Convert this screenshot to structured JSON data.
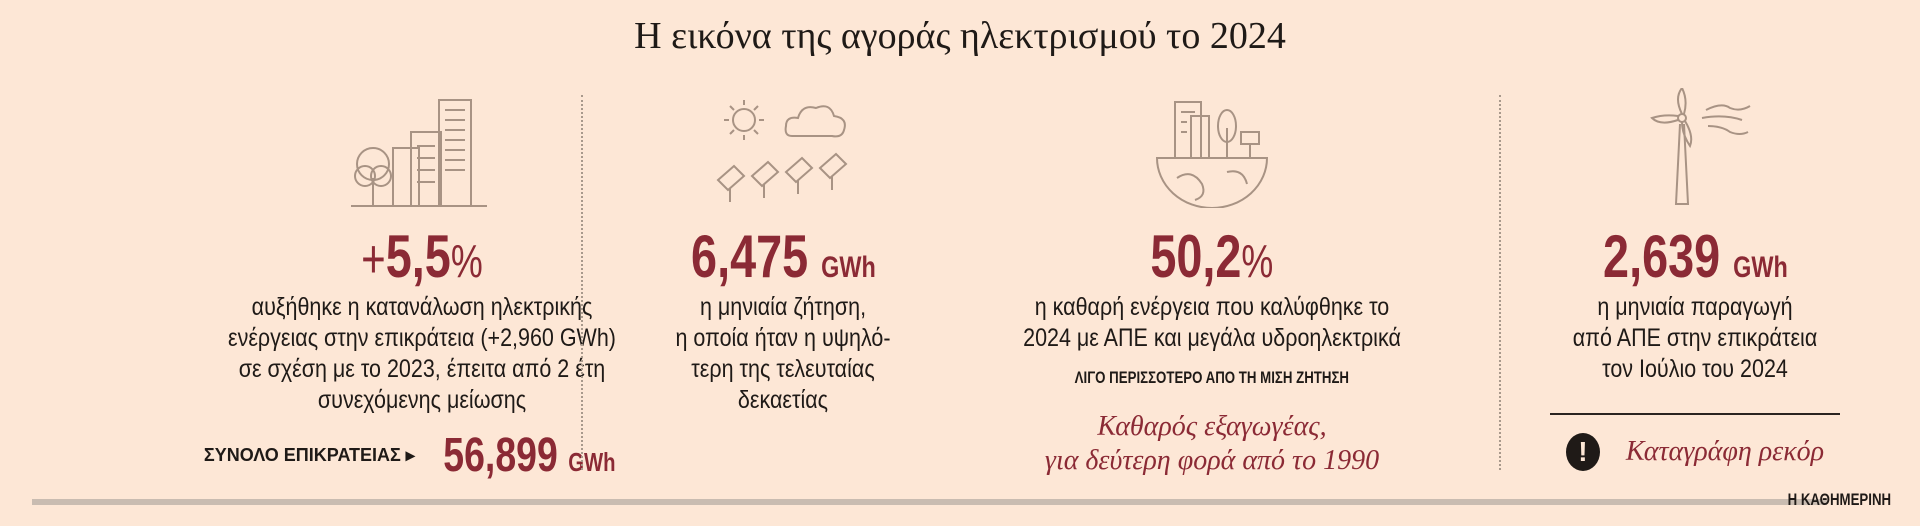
{
  "title": "Η εικόνα της αγοράς ηλεκτρισμού το 2024",
  "colors": {
    "accent": "#8b2a35",
    "background": "#fde7d6",
    "icon": "#a89384"
  },
  "panels": [
    {
      "icon": "city-buildings-tree-icon",
      "value_prefix": "+",
      "value": "5,5",
      "value_suffix": "%",
      "lines": [
        "αυξήθηκε η κατανάλωση ηλεκτρικής",
        "ενέργειας στην επικράτεια (+2,960 GWh)",
        "σε σχέση με το 2023, έπειτα από 2 έτη",
        "συνεχόμενης μείωσης"
      ],
      "total_label": "ΣΥΝΟΛΟ ΕΠΙΚΡΑΤΕΙΑΣ ▸",
      "total_value": "56,899",
      "total_unit": "GWh"
    },
    {
      "icon": "sun-cloud-solar-panels-icon",
      "value": "6,475",
      "unit": "GWh",
      "lines": [
        "η μηνιαία ζήτηση,",
        "η οποία ήταν η υψηλό-",
        "τερη της τελευταίας",
        "δεκαετίας"
      ]
    },
    {
      "icon": "green-earth-city-icon",
      "value": "50,2",
      "value_suffix": "%",
      "lines": [
        "η καθαρή ενέργεια που καλύφθηκε το",
        "2024 με ΑΠΕ και μεγάλα υδροηλεκτρικά"
      ],
      "caps": "ΛΙΓΟ ΠΕΡΙΣΣΟΤΕΡΟ ΑΠΟ ΤΗ ΜΙΣΗ ΖΗΤΗΣΗ",
      "italic": [
        "Καθαρός εξαγωγέας,",
        "για δεύτερη φορά από το 1990"
      ]
    },
    {
      "icon": "wind-turbine-icon",
      "value": "2,639",
      "unit": "GWh",
      "lines": [
        "η μηνιαία παραγωγή",
        "από ΑΠΕ στην επικράτεια",
        "τον Ιούλιο του 2024"
      ],
      "record_icon": "exclamation-icon",
      "record": "Καταγράφη ρεκόρ"
    }
  ],
  "logo": "Η ΚΑΘΗΜΕΡΙΝΗ"
}
